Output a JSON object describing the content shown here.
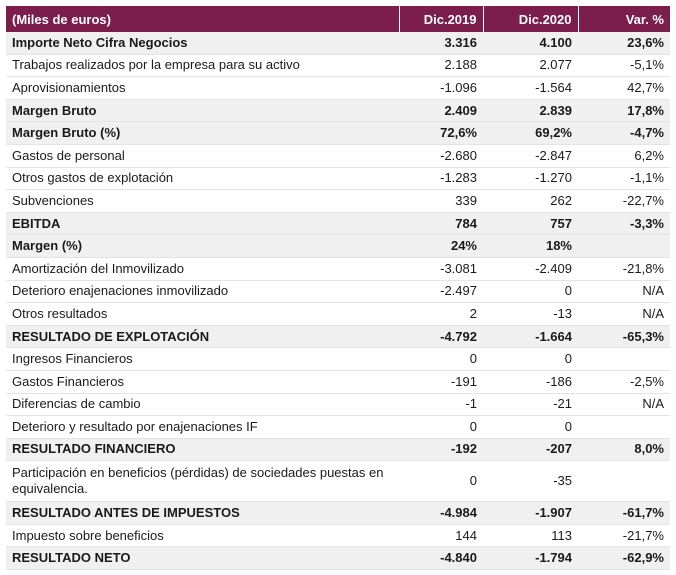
{
  "header": {
    "label": "(Miles de euros)",
    "col_2019": "Dic.2019",
    "col_2020": "Dic.2020",
    "col_var": "Var. %"
  },
  "rows": [
    {
      "label": "Importe Neto Cifra Negocios",
      "v2019": "3.316",
      "v2020": "4.100",
      "var": "23,6%",
      "bold": true
    },
    {
      "label": "Trabajos realizados por la empresa para su activo",
      "v2019": "2.188",
      "v2020": "2.077",
      "var": "-5,1%",
      "bold": false
    },
    {
      "label": "Aprovisionamientos",
      "v2019": "-1.096",
      "v2020": "-1.564",
      "var": "42,7%",
      "bold": false
    },
    {
      "label": "Margen Bruto",
      "v2019": "2.409",
      "v2020": "2.839",
      "var": "17,8%",
      "bold": true
    },
    {
      "label": "Margen Bruto (%)",
      "v2019": "72,6%",
      "v2020": "69,2%",
      "var": "-4,7%",
      "bold": true
    },
    {
      "label": "Gastos de personal",
      "v2019": "-2.680",
      "v2020": "-2.847",
      "var": "6,2%",
      "bold": false
    },
    {
      "label": "Otros gastos de explotación",
      "v2019": "-1.283",
      "v2020": "-1.270",
      "var": "-1,1%",
      "bold": false
    },
    {
      "label": "Subvenciones",
      "v2019": "339",
      "v2020": "262",
      "var": "-22,7%",
      "bold": false
    },
    {
      "label": "EBITDA",
      "v2019": "784",
      "v2020": "757",
      "var": "-3,3%",
      "bold": true
    },
    {
      "label": "Margen (%)",
      "v2019": "24%",
      "v2020": "18%",
      "var": "",
      "bold": true
    },
    {
      "label": "Amortización del Inmovilizado",
      "v2019": "-3.081",
      "v2020": "-2.409",
      "var": "-21,8%",
      "bold": false
    },
    {
      "label": "Deterioro enajenaciones inmovilizado",
      "v2019": "-2.497",
      "v2020": "0",
      "var": "N/A",
      "bold": false
    },
    {
      "label": "Otros resultados",
      "v2019": "2",
      "v2020": "-13",
      "var": "N/A",
      "bold": false
    },
    {
      "label": "RESULTADO DE EXPLOTACIÓN",
      "v2019": "-4.792",
      "v2020": "-1.664",
      "var": "-65,3%",
      "bold": true
    },
    {
      "label": "Ingresos Financieros",
      "v2019": "0",
      "v2020": "0",
      "var": "",
      "bold": false
    },
    {
      "label": "Gastos Financieros",
      "v2019": "-191",
      "v2020": "-186",
      "var": "-2,5%",
      "bold": false
    },
    {
      "label": "Diferencias de cambio",
      "v2019": "-1",
      "v2020": "-21",
      "var": "N/A",
      "bold": false
    },
    {
      "label": "Deterioro y resultado por enajenaciones IF",
      "v2019": "0",
      "v2020": "0",
      "var": "",
      "bold": false
    },
    {
      "label": "RESULTADO FINANCIERO",
      "v2019": "-192",
      "v2020": "-207",
      "var": "8,0%",
      "bold": true
    },
    {
      "label": "Participación en beneficios (pérdidas) de sociedades puestas en equivalencia.",
      "v2019": "0",
      "v2020": "-35",
      "var": "",
      "bold": false,
      "two_line": true
    },
    {
      "label": "RESULTADO ANTES DE IMPUESTOS",
      "v2019": "-4.984",
      "v2020": "-1.907",
      "var": "-61,7%",
      "bold": true
    },
    {
      "label": "Impuesto sobre beneficios",
      "v2019": "144",
      "v2020": "113",
      "var": "-21,7%",
      "bold": false
    },
    {
      "label": "RESULTADO NETO",
      "v2019": "-4.840",
      "v2020": "-1.794",
      "var": "-62,9%",
      "bold": true
    }
  ]
}
